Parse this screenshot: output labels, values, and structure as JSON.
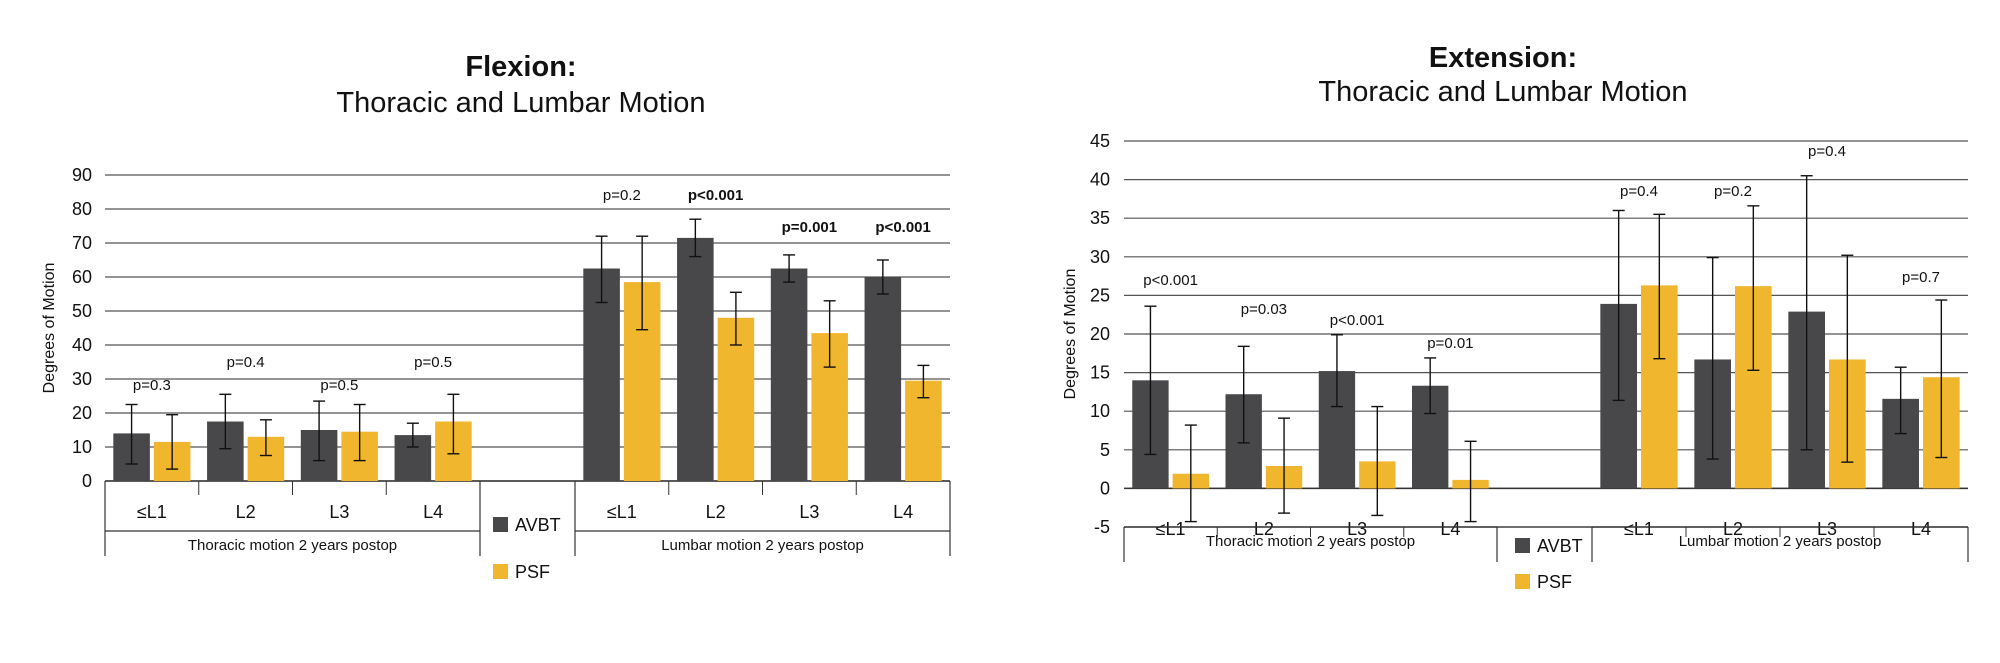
{
  "colors": {
    "AVBT": "#48484a",
    "PSF": "#f0b62e",
    "grid": "#555555",
    "text": "#111111"
  },
  "chart_data": [
    {
      "type": "bar",
      "title": "Flexion:",
      "subtitle": "Thoracic and Lumbar Motion",
      "ylabel": "Degrees of Motion",
      "ylim": [
        0,
        90
      ],
      "yticks": [
        0,
        10,
        20,
        30,
        40,
        50,
        60,
        70,
        80,
        90
      ],
      "grid": true,
      "legend": [
        "AVBT",
        "PSF"
      ],
      "groups": [
        {
          "label": "Thoracic motion 2 years postop",
          "categories": [
            "≤L1",
            "L2",
            "L3",
            "L4"
          ],
          "series": [
            {
              "name": "AVBT",
              "values": [
                14,
                17.5,
                15,
                13.5
              ],
              "err_low": [
                5,
                9.5,
                6,
                10
              ],
              "err_high": [
                22.5,
                25.5,
                23.5,
                17
              ]
            },
            {
              "name": "PSF",
              "values": [
                11.5,
                13,
                14.5,
                17.5
              ],
              "err_low": [
                3.5,
                7.5,
                6,
                8
              ],
              "err_high": [
                19.5,
                18,
                22.5,
                25.5
              ]
            }
          ],
          "pvalues": [
            {
              "text": "p=0.3",
              "bold": false
            },
            {
              "text": "p=0.4",
              "bold": false
            },
            {
              "text": "p=0.5",
              "bold": false
            },
            {
              "text": "p=0.5",
              "bold": false
            }
          ]
        },
        {
          "label": "Lumbar motion 2 years postop",
          "categories": [
            "≤L1",
            "L2",
            "L3",
            "L4"
          ],
          "series": [
            {
              "name": "AVBT",
              "values": [
                62.5,
                71.5,
                62.5,
                60
              ],
              "err_low": [
                52.5,
                66,
                58.5,
                55
              ],
              "err_high": [
                72,
                77,
                66.5,
                65
              ]
            },
            {
              "name": "PSF",
              "values": [
                58.5,
                48,
                43.5,
                29.5
              ],
              "err_low": [
                44.5,
                40,
                33.5,
                24.5
              ],
              "err_high": [
                72,
                55.5,
                53,
                34
              ]
            }
          ],
          "pvalues": [
            {
              "text": "p=0.2",
              "bold": false
            },
            {
              "text": "p<0.001",
              "bold": true
            },
            {
              "text": "p=0.001",
              "bold": true
            },
            {
              "text": "p<0.001",
              "bold": true
            }
          ]
        }
      ]
    },
    {
      "type": "bar",
      "title": "Extension:",
      "subtitle": "Thoracic and Lumbar Motion",
      "ylabel": "Degrees of Motion",
      "ylim": [
        -5,
        45
      ],
      "yticks": [
        -5,
        0,
        5,
        10,
        15,
        20,
        25,
        30,
        35,
        40,
        45
      ],
      "grid": true,
      "legend": [
        "AVBT",
        "PSF"
      ],
      "groups": [
        {
          "label": "Thoracic motion 2 years postop",
          "categories": [
            "≤L1",
            "L2",
            "L3",
            "L4"
          ],
          "series": [
            {
              "name": "AVBT",
              "values": [
                14,
                12.2,
                15.2,
                13.3
              ],
              "err_low": [
                4.4,
                5.9,
                10.6,
                9.7
              ],
              "err_high": [
                23.6,
                18.4,
                19.9,
                16.9
              ]
            },
            {
              "name": "PSF",
              "values": [
                1.9,
                2.9,
                3.5,
                1.1
              ],
              "err_low": [
                -4.3,
                -3.2,
                -3.5,
                -4.3
              ],
              "err_high": [
                8.2,
                9.1,
                10.6,
                6.1
              ]
            }
          ],
          "pvalues": [
            {
              "text": "p<0.001",
              "bold": false
            },
            {
              "text": "p=0.03",
              "bold": false
            },
            {
              "text": "p<0.001",
              "bold": false
            },
            {
              "text": "p=0.01",
              "bold": false
            }
          ]
        },
        {
          "label": "Lumbar motion 2 years postop",
          "categories": [
            "≤L1",
            "L2",
            "L3",
            "L4"
          ],
          "series": [
            {
              "name": "AVBT",
              "values": [
                23.9,
                16.7,
                22.9,
                11.6
              ],
              "err_low": [
                11.4,
                3.8,
                5,
                7.1
              ],
              "err_high": [
                36,
                29.9,
                40.5,
                15.7
              ]
            },
            {
              "name": "PSF",
              "values": [
                26.3,
                26.2,
                16.7,
                14.4
              ],
              "err_low": [
                16.8,
                15.3,
                3.4,
                4
              ],
              "err_high": [
                35.5,
                36.6,
                30.2,
                24.4
              ]
            }
          ],
          "pvalues": [
            {
              "text": "p=0.4",
              "bold": false
            },
            {
              "text": "p=0.2",
              "bold": false
            },
            {
              "text": "p=0.4",
              "bold": false
            },
            {
              "text": "p=0.7",
              "bold": false
            }
          ]
        }
      ]
    }
  ]
}
